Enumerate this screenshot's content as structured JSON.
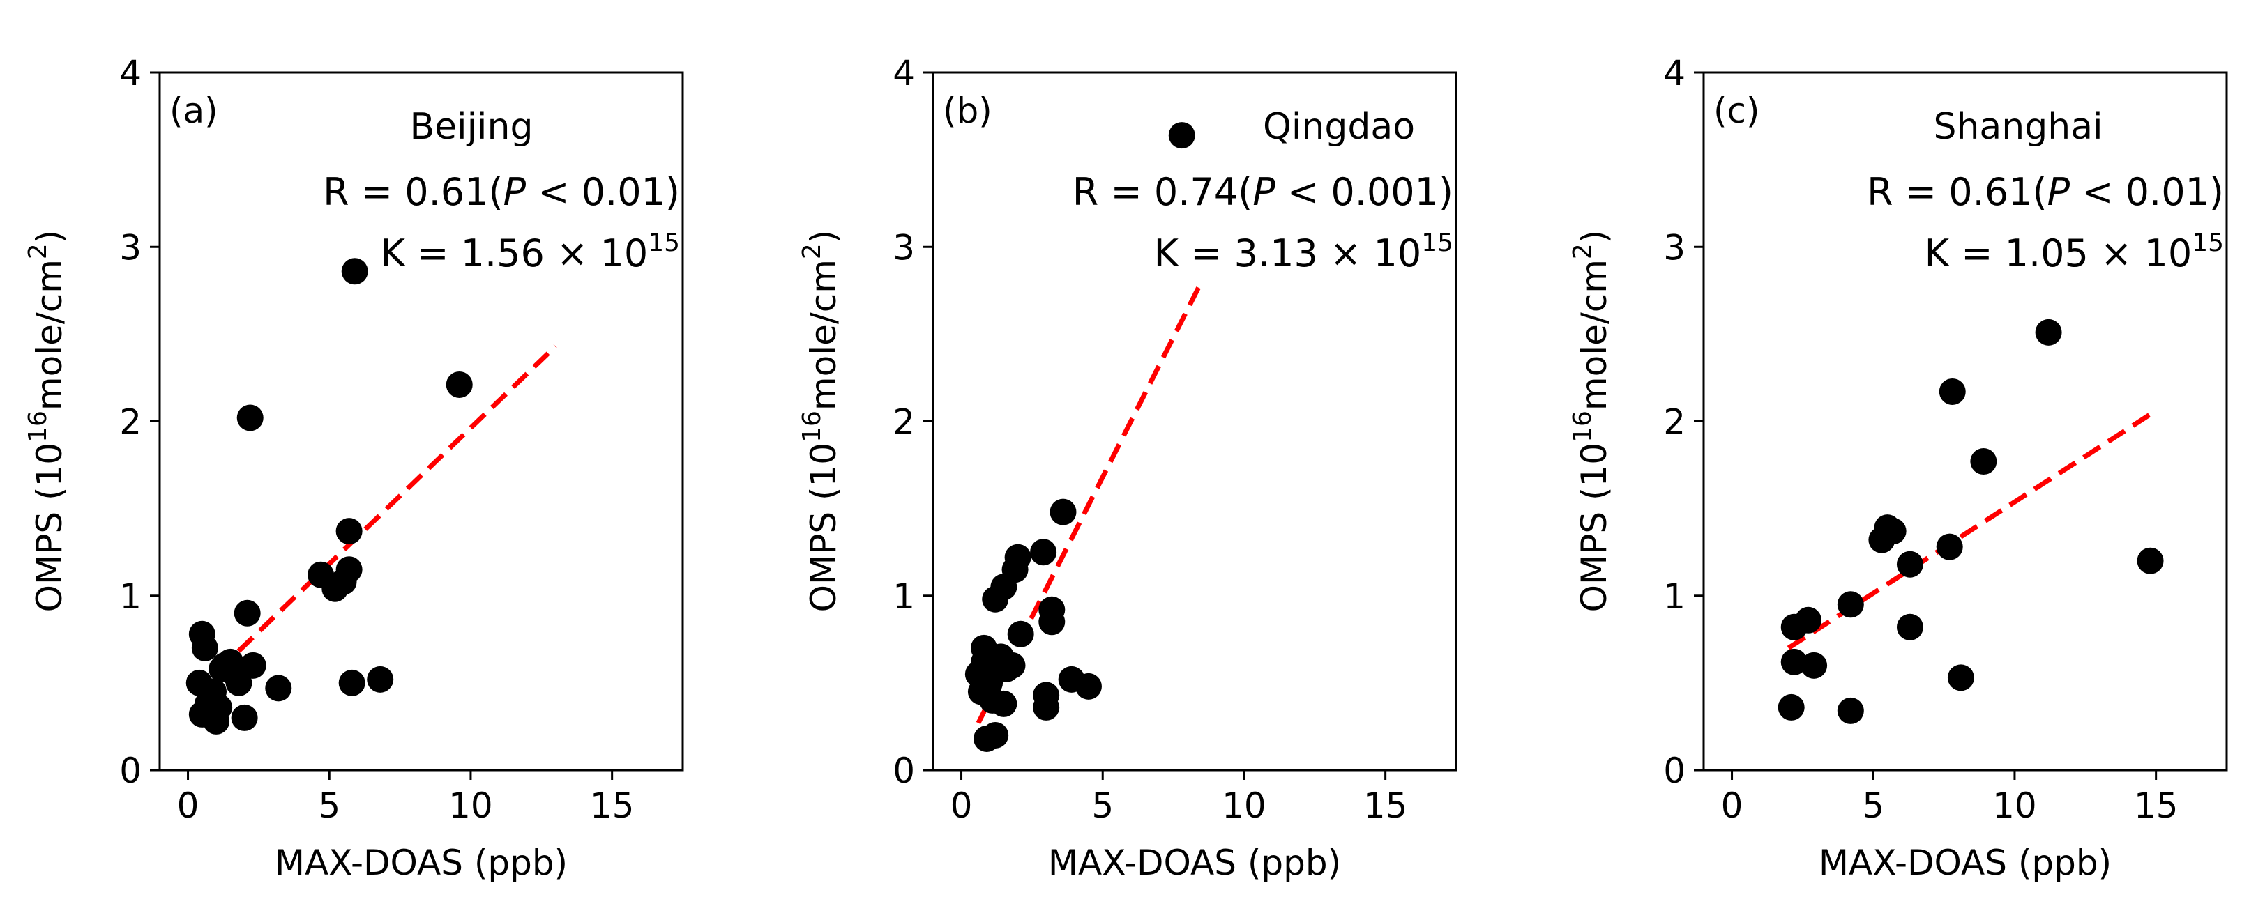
{
  "chart_data": [
    {
      "type": "scatter",
      "panel_label": "(a)",
      "city": "Beijing",
      "r_text": "R = 0.61(",
      "p_symbol": "P",
      "p_text": " < 0.01)",
      "k_text": "K = 1.56 × 10",
      "k_exp": "15",
      "xlabel": "MAX-DOAS (ppb)",
      "ylabel_prefix": "OMPS (10",
      "ylabel_exp1": "16",
      "ylabel_mid": "mole/cm",
      "ylabel_exp2": "2",
      "ylabel_suffix": ")",
      "xlim": [
        -1,
        17.5
      ],
      "ylim": [
        0,
        4
      ],
      "xticks": [
        0,
        5,
        10,
        15
      ],
      "yticks": [
        0,
        1,
        2,
        3,
        4
      ],
      "points": [
        [
          0.4,
          0.5
        ],
        [
          0.5,
          0.78
        ],
        [
          0.6,
          0.7
        ],
        [
          0.5,
          0.32
        ],
        [
          0.7,
          0.38
        ],
        [
          0.9,
          0.45
        ],
        [
          1.0,
          0.28
        ],
        [
          1.1,
          0.36
        ],
        [
          1.2,
          0.58
        ],
        [
          1.3,
          0.6
        ],
        [
          1.5,
          0.62
        ],
        [
          1.6,
          0.56
        ],
        [
          1.8,
          0.5
        ],
        [
          2.0,
          0.3
        ],
        [
          2.1,
          0.9
        ],
        [
          2.2,
          2.02
        ],
        [
          2.3,
          0.6
        ],
        [
          3.2,
          0.47
        ],
        [
          4.7,
          1.12
        ],
        [
          5.2,
          1.04
        ],
        [
          5.5,
          1.08
        ],
        [
          5.7,
          1.15
        ],
        [
          5.7,
          1.37
        ],
        [
          5.8,
          0.5
        ],
        [
          5.9,
          2.86
        ],
        [
          6.8,
          0.52
        ],
        [
          9.6,
          2.21
        ]
      ],
      "fit": {
        "x": [
          0.3,
          13.0
        ],
        "y": [
          0.45,
          2.43
        ]
      }
    },
    {
      "type": "scatter",
      "panel_label": "(b)",
      "city": "Qingdao",
      "r_text": "R = 0.74(",
      "p_symbol": "P",
      "p_text": " < 0.001)",
      "k_text": "K = 3.13 × 10",
      "k_exp": "15",
      "xlabel": "MAX-DOAS (ppb)",
      "ylabel_prefix": "OMPS (10",
      "ylabel_exp1": "16",
      "ylabel_mid": "mole/cm",
      "ylabel_exp2": "2",
      "ylabel_suffix": ")",
      "xlim": [
        -1,
        17.5
      ],
      "ylim": [
        0,
        4
      ],
      "xticks": [
        0,
        5,
        10,
        15
      ],
      "yticks": [
        0,
        1,
        2,
        3,
        4
      ],
      "points": [
        [
          0.6,
          0.55
        ],
        [
          0.7,
          0.45
        ],
        [
          0.8,
          0.62
        ],
        [
          0.8,
          0.7
        ],
        [
          0.9,
          0.18
        ],
        [
          1.0,
          0.5
        ],
        [
          1.1,
          0.4
        ],
        [
          1.1,
          0.55
        ],
        [
          1.2,
          0.2
        ],
        [
          1.2,
          0.98
        ],
        [
          1.3,
          0.6
        ],
        [
          1.4,
          0.65
        ],
        [
          1.5,
          1.05
        ],
        [
          1.5,
          0.38
        ],
        [
          1.6,
          0.58
        ],
        [
          1.8,
          0.6
        ],
        [
          1.9,
          1.15
        ],
        [
          2.0,
          1.22
        ],
        [
          2.1,
          0.78
        ],
        [
          2.9,
          1.25
        ],
        [
          3.0,
          0.36
        ],
        [
          3.0,
          0.43
        ],
        [
          3.2,
          0.92
        ],
        [
          3.2,
          0.85
        ],
        [
          3.6,
          1.48
        ],
        [
          3.9,
          0.52
        ],
        [
          4.5,
          0.48
        ],
        [
          7.8,
          3.64
        ]
      ],
      "fit": {
        "x": [
          0.6,
          8.4
        ],
        "y": [
          0.27,
          2.77
        ]
      }
    },
    {
      "type": "scatter",
      "panel_label": "(c)",
      "city": "Shanghai",
      "r_text": "R = 0.61(",
      "p_symbol": "P",
      "p_text": " < 0.01)",
      "k_text": "K = 1.05 × 10",
      "k_exp": "15",
      "xlabel": "MAX-DOAS (ppb)",
      "ylabel_prefix": "OMPS (10",
      "ylabel_exp1": "16",
      "ylabel_mid": "mole/cm",
      "ylabel_exp2": "2",
      "ylabel_suffix": ")",
      "xlim": [
        -1,
        17.5
      ],
      "ylim": [
        0,
        4
      ],
      "xticks": [
        0,
        5,
        10,
        15
      ],
      "yticks": [
        0,
        1,
        2,
        3,
        4
      ],
      "points": [
        [
          2.1,
          0.36
        ],
        [
          2.2,
          0.82
        ],
        [
          2.2,
          0.62
        ],
        [
          2.7,
          0.86
        ],
        [
          2.9,
          0.6
        ],
        [
          4.2,
          0.95
        ],
        [
          4.2,
          0.34
        ],
        [
          5.3,
          1.32
        ],
        [
          5.5,
          1.39
        ],
        [
          5.7,
          1.37
        ],
        [
          6.3,
          1.18
        ],
        [
          6.3,
          0.82
        ],
        [
          7.7,
          1.28
        ],
        [
          7.8,
          2.17
        ],
        [
          8.1,
          0.53
        ],
        [
          8.9,
          1.77
        ],
        [
          11.2,
          2.51
        ],
        [
          14.8,
          1.2
        ]
      ],
      "fit": {
        "x": [
          2.0,
          14.8
        ],
        "y": [
          0.7,
          2.04
        ]
      }
    }
  ]
}
